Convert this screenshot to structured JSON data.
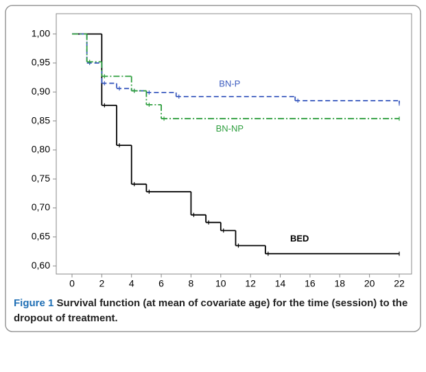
{
  "chart_data": {
    "type": "step",
    "xlim": [
      -1.06,
      22.83
    ],
    "ylim": [
      0.586,
      1.035
    ],
    "xticks": [
      0,
      2,
      4,
      6,
      8,
      10,
      12,
      14,
      16,
      18,
      20,
      22
    ],
    "yticks": [
      {
        "value": 1.0,
        "label": "1,00"
      },
      {
        "value": 0.95,
        "label": "0,95"
      },
      {
        "value": 0.9,
        "label": "0,90"
      },
      {
        "value": 0.85,
        "label": "0,85"
      },
      {
        "value": 0.8,
        "label": "0,80"
      },
      {
        "value": 0.75,
        "label": "0,75"
      },
      {
        "value": 0.7,
        "label": "0,70"
      },
      {
        "value": 0.65,
        "label": "0,65"
      },
      {
        "value": 0.6,
        "label": "0,60"
      }
    ],
    "series": [
      {
        "name": "BED",
        "color": "#000000",
        "dash": "",
        "x": [
          0,
          2,
          3,
          4,
          5,
          8,
          9,
          10,
          11,
          13,
          22
        ],
        "values": [
          1.0,
          0.877,
          0.808,
          0.741,
          0.728,
          0.688,
          0.675,
          0.661,
          0.635,
          0.621,
          0.621
        ]
      },
      {
        "name": "BN-P",
        "color": "#3b5bbf",
        "dash": "7 4",
        "x": [
          0,
          1,
          2,
          3,
          4,
          5,
          7,
          15,
          22
        ],
        "values": [
          1.0,
          0.95,
          0.915,
          0.906,
          0.902,
          0.899,
          0.892,
          0.885,
          0.88
        ]
      },
      {
        "name": "BN-NP",
        "color": "#2e9e3e",
        "dash": "9 3 2 3",
        "x": [
          0,
          1,
          2,
          4,
          5,
          6,
          22
        ],
        "values": [
          1.0,
          0.952,
          0.927,
          0.902,
          0.878,
          0.854,
          0.854
        ]
      }
    ]
  },
  "figure": {
    "label": "Figure 1",
    "caption": "Survival function (at mean of covariate age) for the time (session) to the dropout of treatment."
  }
}
